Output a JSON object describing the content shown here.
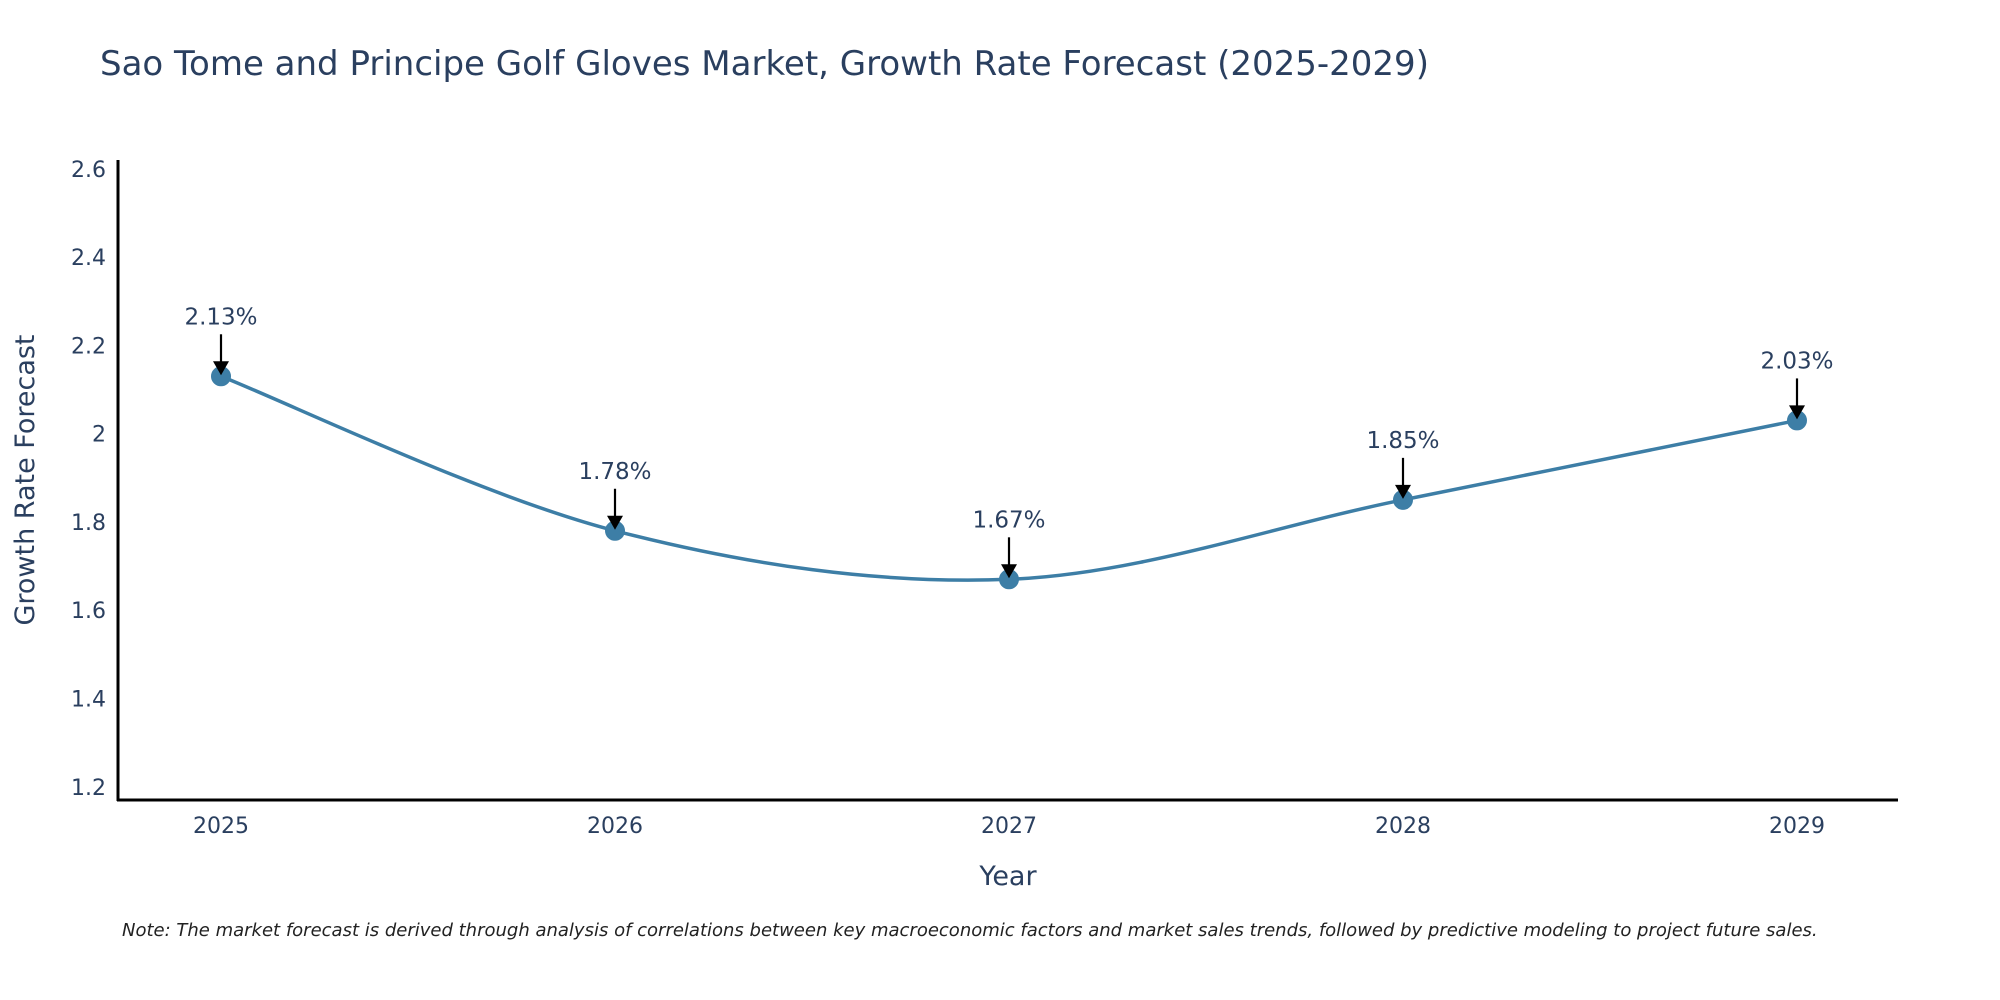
{
  "chart_data": {
    "type": "line",
    "title": "Sao Tome and Principe Golf Gloves Market, Growth Rate Forecast (2025-2029)",
    "xlabel": "Year",
    "ylabel": "Growth Rate Forecast",
    "categories": [
      "2025",
      "2026",
      "2027",
      "2028",
      "2029"
    ],
    "series": [
      {
        "name": "Growth Rate Forecast",
        "values": [
          2.13,
          1.78,
          1.67,
          1.85,
          2.03
        ]
      }
    ],
    "data_labels": [
      "2.13%",
      "1.78%",
      "1.67%",
      "1.85%",
      "2.03%"
    ],
    "ylim": [
      1.17,
      2.62
    ],
    "yticks": [
      1.2,
      1.4,
      1.6,
      1.8,
      2,
      2.2,
      2.4,
      2.6
    ],
    "ytick_labels": [
      "1.2",
      "1.4",
      "1.6",
      "1.8",
      "2",
      "2.2",
      "2.4",
      "2.6"
    ],
    "grid": false,
    "line_color": "#3d7ea6",
    "marker_color": "#3d7ea6",
    "arrow_color": "#000000",
    "note": "Note: The market forecast is derived through analysis of correlations between key macroeconomic factors and market sales trends, followed by predictive modeling to project future sales."
  }
}
